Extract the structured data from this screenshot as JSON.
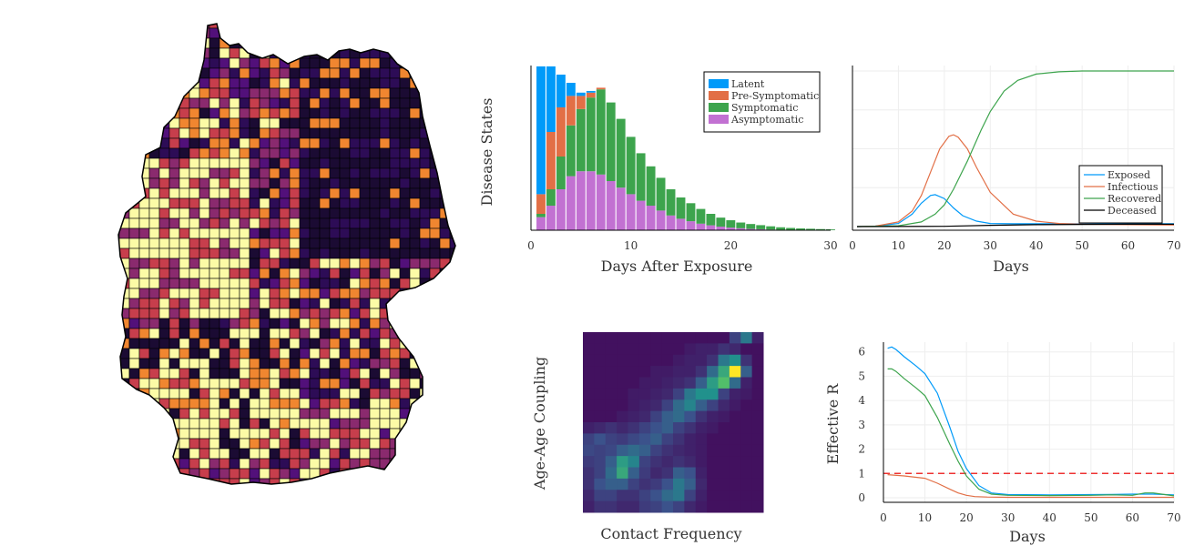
{
  "colors": {
    "latent": "#009af9",
    "presymptomatic": "#e26f46",
    "symptomatic": "#3da44d",
    "asymptomatic": "#c271d2",
    "exposed": "#009af9",
    "infectious": "#e26f46",
    "recovered": "#3da44d",
    "deceased": "#000000",
    "threshold": "#ee3333",
    "map_palette": [
      "#1b0b33",
      "#2d0c56",
      "#52107a",
      "#8a2a6e",
      "#c73e4c",
      "#f08630",
      "#fcfba6"
    ]
  },
  "chart_data": [
    {
      "type": "bar",
      "subtype": "stacked",
      "xlabel": "Days After Exposure",
      "ylabel": "Disease States",
      "xlim": [
        0,
        30
      ],
      "xticks": [
        0,
        10,
        20,
        30
      ],
      "ylim": [
        0,
        1
      ],
      "legend_position": "top-right",
      "categories": [
        1,
        2,
        3,
        4,
        5,
        6,
        7,
        8,
        9,
        10,
        11,
        12,
        13,
        14,
        15,
        16,
        17,
        18,
        19,
        20,
        21,
        22,
        23,
        24,
        25,
        26,
        27,
        28,
        29,
        30
      ],
      "series": [
        {
          "name": "Latent",
          "color_key": "latent",
          "values": [
            0.78,
            0.4,
            0.2,
            0.08,
            0.02,
            0.01,
            0,
            0,
            0,
            0,
            0,
            0,
            0,
            0,
            0,
            0,
            0,
            0,
            0,
            0,
            0,
            0,
            0,
            0,
            0,
            0,
            0,
            0,
            0,
            0
          ]
        },
        {
          "name": "Pre-Symptomatic",
          "color_key": "presymptomatic",
          "values": [
            0.12,
            0.35,
            0.3,
            0.18,
            0.08,
            0.03,
            0.01,
            0,
            0,
            0,
            0,
            0,
            0,
            0,
            0,
            0,
            0,
            0,
            0,
            0,
            0,
            0,
            0,
            0,
            0,
            0,
            0,
            0,
            0,
            0
          ]
        },
        {
          "name": "Symptomatic",
          "color_key": "symptomatic",
          "values": [
            0.02,
            0.1,
            0.2,
            0.31,
            0.38,
            0.45,
            0.52,
            0.48,
            0.42,
            0.35,
            0.29,
            0.24,
            0.2,
            0.16,
            0.13,
            0.11,
            0.09,
            0.07,
            0.055,
            0.045,
            0.035,
            0.03,
            0.025,
            0.02,
            0.015,
            0.012,
            0.01,
            0.008,
            0.006,
            0.005
          ]
        },
        {
          "name": "Asymptomatic",
          "color_key": "asymptomatic",
          "values": [
            0.08,
            0.15,
            0.25,
            0.33,
            0.36,
            0.36,
            0.34,
            0.3,
            0.26,
            0.22,
            0.18,
            0.15,
            0.12,
            0.09,
            0.07,
            0.055,
            0.04,
            0.03,
            0.022,
            0.016,
            0.012,
            0.008,
            0.006,
            0.004,
            0.003,
            0.002,
            0.001,
            0.001,
            0.001,
            0.001
          ]
        }
      ]
    },
    {
      "type": "line",
      "xlabel": "Days",
      "ylabel": "",
      "xlim": [
        0,
        70
      ],
      "xticks": [
        0,
        10,
        20,
        30,
        40,
        50,
        60,
        70
      ],
      "ylim": [
        0,
        1
      ],
      "grid": true,
      "legend_position": "bottom-right",
      "series": [
        {
          "name": "Exposed",
          "color_key": "exposed",
          "x": [
            1,
            5,
            10,
            13,
            15,
            17,
            18,
            20,
            22,
            24,
            27,
            30,
            35,
            40,
            50,
            60,
            70
          ],
          "y": [
            0,
            0.003,
            0.02,
            0.08,
            0.15,
            0.2,
            0.205,
            0.18,
            0.12,
            0.07,
            0.035,
            0.02,
            0.018,
            0.018,
            0.018,
            0.018,
            0.018
          ]
        },
        {
          "name": "Infectious",
          "color_key": "infectious",
          "x": [
            1,
            5,
            10,
            13,
            15,
            17,
            19,
            21,
            22,
            23,
            25,
            27,
            30,
            35,
            40,
            45,
            50,
            60,
            70
          ],
          "y": [
            0,
            0.003,
            0.03,
            0.1,
            0.2,
            0.35,
            0.5,
            0.58,
            0.59,
            0.575,
            0.5,
            0.38,
            0.22,
            0.08,
            0.035,
            0.02,
            0.015,
            0.012,
            0.01
          ]
        },
        {
          "name": "Recovered",
          "color_key": "recovered",
          "x": [
            1,
            10,
            15,
            18,
            20,
            22,
            25,
            28,
            30,
            33,
            36,
            40,
            45,
            50,
            55,
            60,
            70
          ],
          "y": [
            0,
            0.005,
            0.03,
            0.08,
            0.14,
            0.24,
            0.42,
            0.62,
            0.74,
            0.87,
            0.94,
            0.98,
            0.995,
            1.0,
            1.0,
            1.0,
            1.0
          ]
        },
        {
          "name": "Deceased",
          "color_key": "deceased",
          "x": [
            1,
            20,
            30,
            40,
            50,
            60,
            70
          ],
          "y": [
            0,
            0.002,
            0.008,
            0.012,
            0.014,
            0.015,
            0.015
          ]
        }
      ]
    },
    {
      "type": "heatmap",
      "xlabel": "Contact Frequency",
      "ylabel": "Age-Age Coupling",
      "rows": 16,
      "cols": 16,
      "values": [
        [
          0.05,
          0.05,
          0.05,
          0.05,
          0.05,
          0.05,
          0.05,
          0.05,
          0.05,
          0.05,
          0.05,
          0.05,
          0.05,
          0.2,
          0.4,
          0.1
        ],
        [
          0.05,
          0.05,
          0.05,
          0.05,
          0.05,
          0.05,
          0.05,
          0.05,
          0.05,
          0.08,
          0.1,
          0.1,
          0.15,
          0.12,
          0.05,
          0.05
        ],
        [
          0.05,
          0.05,
          0.05,
          0.05,
          0.05,
          0.05,
          0.05,
          0.05,
          0.08,
          0.1,
          0.1,
          0.15,
          0.4,
          0.5,
          0.15,
          0.05
        ],
        [
          0.05,
          0.05,
          0.05,
          0.05,
          0.05,
          0.05,
          0.08,
          0.08,
          0.1,
          0.1,
          0.15,
          0.35,
          0.6,
          1.0,
          0.3,
          0.05
        ],
        [
          0.05,
          0.05,
          0.05,
          0.05,
          0.05,
          0.08,
          0.08,
          0.1,
          0.12,
          0.15,
          0.3,
          0.55,
          0.7,
          0.35,
          0.1,
          0.05
        ],
        [
          0.05,
          0.05,
          0.05,
          0.05,
          0.08,
          0.08,
          0.1,
          0.12,
          0.2,
          0.4,
          0.5,
          0.5,
          0.2,
          0.1,
          0.08,
          0.05
        ],
        [
          0.05,
          0.05,
          0.05,
          0.05,
          0.08,
          0.1,
          0.12,
          0.2,
          0.35,
          0.45,
          0.3,
          0.2,
          0.12,
          0.08,
          0.05,
          0.05
        ],
        [
          0.05,
          0.05,
          0.05,
          0.08,
          0.1,
          0.12,
          0.2,
          0.3,
          0.35,
          0.25,
          0.15,
          0.1,
          0.08,
          0.05,
          0.05,
          0.05
        ],
        [
          0.1,
          0.12,
          0.15,
          0.12,
          0.15,
          0.2,
          0.25,
          0.3,
          0.2,
          0.15,
          0.1,
          0.08,
          0.05,
          0.05,
          0.05,
          0.05
        ],
        [
          0.2,
          0.25,
          0.2,
          0.18,
          0.22,
          0.25,
          0.3,
          0.2,
          0.15,
          0.1,
          0.08,
          0.05,
          0.05,
          0.05,
          0.05,
          0.05
        ],
        [
          0.22,
          0.2,
          0.22,
          0.3,
          0.35,
          0.3,
          0.2,
          0.15,
          0.12,
          0.1,
          0.08,
          0.05,
          0.05,
          0.05,
          0.05,
          0.05
        ],
        [
          0.18,
          0.2,
          0.3,
          0.55,
          0.45,
          0.2,
          0.15,
          0.12,
          0.15,
          0.12,
          0.08,
          0.05,
          0.05,
          0.05,
          0.05,
          0.05
        ],
        [
          0.15,
          0.2,
          0.35,
          0.6,
          0.3,
          0.18,
          0.12,
          0.15,
          0.3,
          0.25,
          0.1,
          0.05,
          0.05,
          0.05,
          0.05,
          0.05
        ],
        [
          0.15,
          0.25,
          0.3,
          0.3,
          0.2,
          0.15,
          0.18,
          0.25,
          0.4,
          0.3,
          0.12,
          0.05,
          0.05,
          0.05,
          0.05,
          0.05
        ],
        [
          0.12,
          0.2,
          0.2,
          0.15,
          0.15,
          0.2,
          0.25,
          0.35,
          0.4,
          0.2,
          0.1,
          0.05,
          0.05,
          0.05,
          0.05,
          0.05
        ],
        [
          0.1,
          0.15,
          0.15,
          0.12,
          0.12,
          0.18,
          0.2,
          0.25,
          0.2,
          0.12,
          0.08,
          0.05,
          0.05,
          0.05,
          0.05,
          0.05
        ]
      ]
    },
    {
      "type": "line",
      "xlabel": "Days",
      "ylabel": "Effective R",
      "xlim": [
        0,
        70
      ],
      "xticks": [
        0,
        10,
        20,
        30,
        40,
        50,
        60,
        70
      ],
      "ylim": [
        0,
        6.4
      ],
      "yticks": [
        0,
        1,
        2,
        3,
        4,
        5,
        6
      ],
      "grid": true,
      "threshold": 1,
      "series": [
        {
          "color_key": "exposed",
          "x": [
            1,
            2,
            3,
            5,
            8,
            10,
            13,
            16,
            18,
            20,
            23,
            26,
            30,
            40,
            50,
            55,
            60,
            65,
            70
          ],
          "y": [
            6.15,
            6.2,
            6.1,
            5.8,
            5.4,
            5.1,
            4.3,
            2.9,
            1.9,
            1.2,
            0.5,
            0.2,
            0.13,
            0.12,
            0.13,
            0.14,
            0.15,
            0.15,
            0.12
          ]
        },
        {
          "color_key": "recovered",
          "x": [
            1,
            2,
            3,
            5,
            8,
            10,
            13,
            16,
            18,
            20,
            23,
            26,
            30,
            40,
            50,
            55,
            60,
            63,
            65,
            67,
            70
          ],
          "y": [
            5.3,
            5.3,
            5.2,
            4.9,
            4.5,
            4.2,
            3.3,
            2.2,
            1.5,
            0.9,
            0.35,
            0.15,
            0.1,
            0.09,
            0.1,
            0.12,
            0.1,
            0.2,
            0.2,
            0.15,
            0.08
          ]
        },
        {
          "color_key": "infectious",
          "x": [
            1,
            5,
            10,
            13,
            16,
            18,
            20,
            22,
            25,
            30,
            40,
            50,
            60,
            70
          ],
          "y": [
            0.95,
            0.9,
            0.8,
            0.6,
            0.35,
            0.2,
            0.1,
            0.05,
            0.03,
            0.02,
            0.02,
            0.02,
            0.02,
            0.02
          ]
        }
      ]
    }
  ]
}
